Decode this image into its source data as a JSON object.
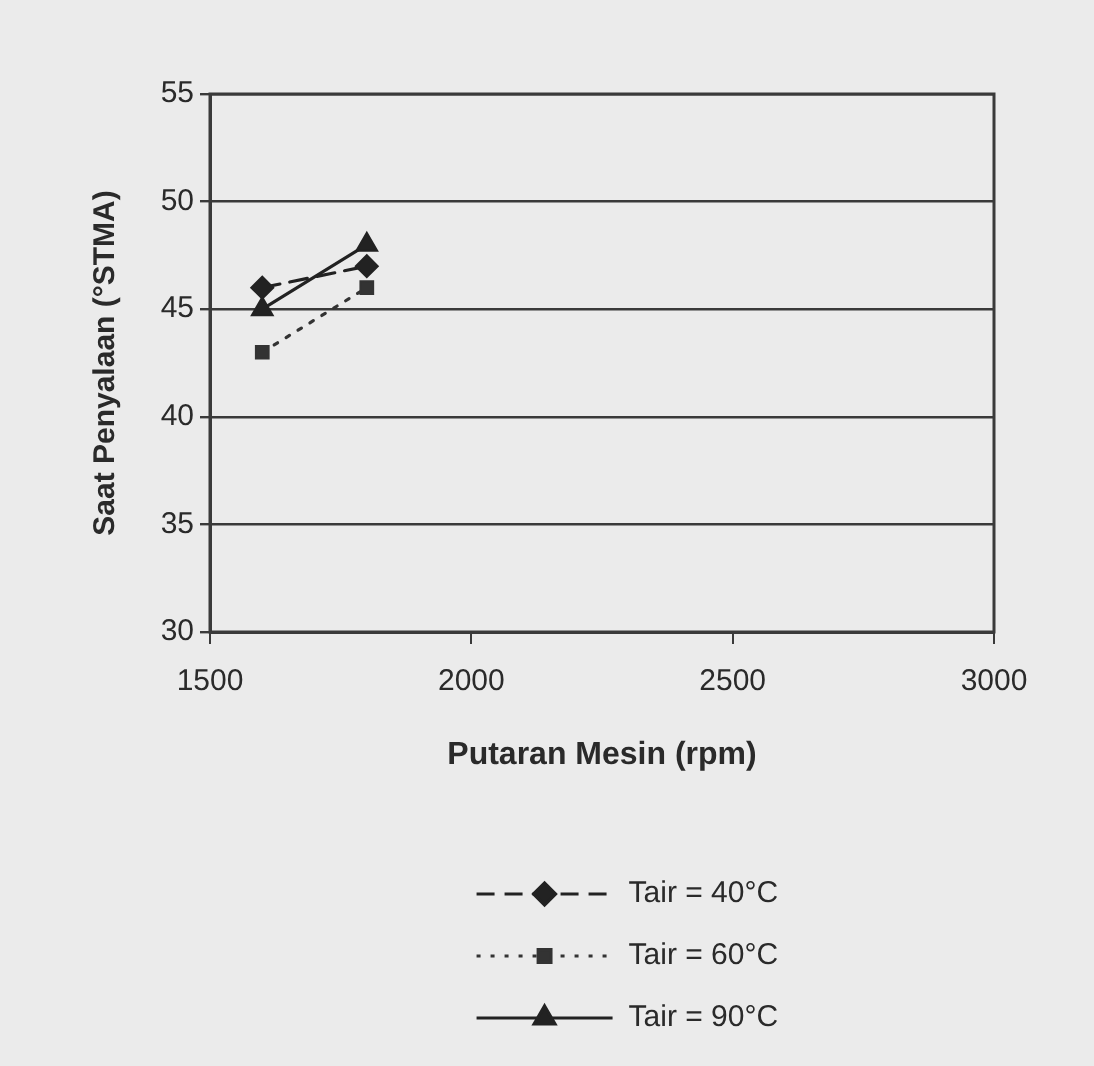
{
  "chart_data": {
    "type": "line",
    "xlabel": "Putaran Mesin (rpm)",
    "ylabel": "Saat Penyalaan (°STMA)",
    "x": [
      1600,
      1800
    ],
    "series": [
      {
        "name": "Tair = 40°C",
        "color": "#222222",
        "values": [
          46,
          47
        ],
        "marker": "diamond",
        "line_style": "dashed"
      },
      {
        "name": "Tair = 60°C",
        "color": "#333333",
        "values": [
          43,
          46
        ],
        "marker": "square",
        "line_style": "dotted"
      },
      {
        "name": "Tair = 90°C",
        "color": "#222222",
        "values": [
          45,
          48
        ],
        "marker": "triangle",
        "line_style": "solid"
      }
    ],
    "xlim": [
      1500,
      3000
    ],
    "xticks": [
      1500,
      2000,
      2500,
      3000
    ],
    "ylim": [
      30,
      55
    ],
    "yticks": [
      30,
      35,
      40,
      45,
      50,
      55
    ],
    "grid": "y",
    "legend": "bottom"
  }
}
